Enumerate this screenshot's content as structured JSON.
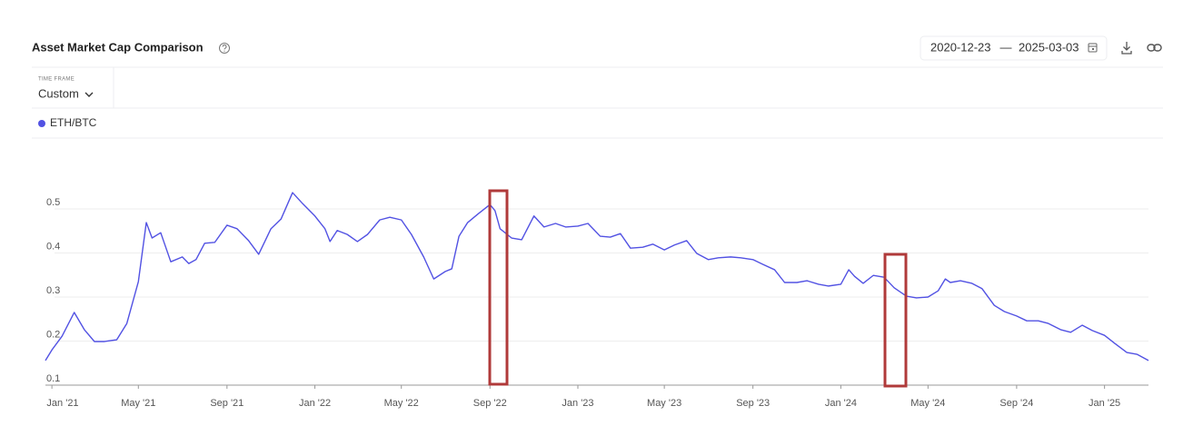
{
  "controls": {
    "time_frame_label": "TIME FRAME",
    "time_frame": "Custom",
    "range_separator": "—"
  },
  "chart_data": {
    "type": "line",
    "title": "Asset Market Cap Comparison",
    "xlim": [
      "2020-12-23",
      "2025-03-03"
    ],
    "xticks": [
      {
        "value": "2021-01-01",
        "label": "Jan '21"
      },
      {
        "value": "2021-05-01",
        "label": "May '21"
      },
      {
        "value": "2021-09-01",
        "label": "Sep '21"
      },
      {
        "value": "2022-01-01",
        "label": "Jan '22"
      },
      {
        "value": "2022-05-01",
        "label": "May '22"
      },
      {
        "value": "2022-09-01",
        "label": "Sep '22"
      },
      {
        "value": "2023-01-01",
        "label": "Jan '23"
      },
      {
        "value": "2023-05-01",
        "label": "May '23"
      },
      {
        "value": "2023-09-01",
        "label": "Sep '23"
      },
      {
        "value": "2024-01-01",
        "label": "Jan '24"
      },
      {
        "value": "2024-05-01",
        "label": "May '24"
      },
      {
        "value": "2024-09-01",
        "label": "Sep '24"
      },
      {
        "value": "2025-01-01",
        "label": "Jan '25"
      }
    ],
    "ylim": [
      0.1,
      0.6
    ],
    "yticks": [
      0.1,
      0.2,
      0.3,
      0.4,
      0.5
    ],
    "grid": true,
    "x": [
      "2020-12-23",
      "2021-01-01",
      "2021-01-15",
      "2021-02-01",
      "2021-02-15",
      "2021-03-01",
      "2021-03-15",
      "2021-04-01",
      "2021-04-15",
      "2021-05-01",
      "2021-05-12",
      "2021-05-20",
      "2021-06-01",
      "2021-06-15",
      "2021-07-01",
      "2021-07-10",
      "2021-07-20",
      "2021-08-01",
      "2021-08-15",
      "2021-09-01",
      "2021-09-15",
      "2021-10-01",
      "2021-10-15",
      "2021-11-01",
      "2021-11-15",
      "2021-12-01",
      "2021-12-15",
      "2022-01-01",
      "2022-01-15",
      "2022-01-22",
      "2022-02-01",
      "2022-02-15",
      "2022-03-01",
      "2022-03-15",
      "2022-04-01",
      "2022-04-15",
      "2022-05-01",
      "2022-05-15",
      "2022-06-01",
      "2022-06-15",
      "2022-07-01",
      "2022-07-10",
      "2022-07-20",
      "2022-08-01",
      "2022-08-15",
      "2022-09-01",
      "2022-09-08",
      "2022-09-15",
      "2022-10-01",
      "2022-10-15",
      "2022-11-01",
      "2022-11-15",
      "2022-12-01",
      "2022-12-15",
      "2023-01-01",
      "2023-01-15",
      "2023-02-01",
      "2023-02-15",
      "2023-03-01",
      "2023-03-15",
      "2023-04-01",
      "2023-04-15",
      "2023-05-01",
      "2023-05-15",
      "2023-06-01",
      "2023-06-15",
      "2023-07-01",
      "2023-07-15",
      "2023-08-01",
      "2023-08-15",
      "2023-09-01",
      "2023-09-15",
      "2023-10-01",
      "2023-10-15",
      "2023-11-01",
      "2023-11-15",
      "2023-12-01",
      "2023-12-15",
      "2024-01-01",
      "2024-01-12",
      "2024-01-20",
      "2024-02-01",
      "2024-02-15",
      "2024-03-01",
      "2024-03-15",
      "2024-04-01",
      "2024-04-15",
      "2024-05-01",
      "2024-05-15",
      "2024-05-25",
      "2024-06-01",
      "2024-06-15",
      "2024-07-01",
      "2024-07-15",
      "2024-08-01",
      "2024-08-15",
      "2024-09-01",
      "2024-09-15",
      "2024-10-01",
      "2024-10-15",
      "2024-11-01",
      "2024-11-15",
      "2024-12-01",
      "2024-12-15",
      "2025-01-01",
      "2025-01-15",
      "2025-02-01",
      "2025-02-15",
      "2025-03-03"
    ],
    "series": [
      {
        "name": "ETH/BTC",
        "color": "#5252e3",
        "values": [
          0.156,
          0.18,
          0.211,
          0.265,
          0.226,
          0.199,
          0.199,
          0.203,
          0.24,
          0.335,
          0.469,
          0.434,
          0.446,
          0.38,
          0.391,
          0.376,
          0.385,
          0.422,
          0.424,
          0.463,
          0.455,
          0.428,
          0.397,
          0.455,
          0.477,
          0.537,
          0.512,
          0.484,
          0.455,
          0.426,
          0.451,
          0.442,
          0.426,
          0.442,
          0.475,
          0.481,
          0.475,
          0.442,
          0.391,
          0.341,
          0.358,
          0.364,
          0.438,
          0.469,
          0.488,
          0.51,
          0.496,
          0.455,
          0.434,
          0.43,
          0.484,
          0.459,
          0.467,
          0.459,
          0.461,
          0.467,
          0.438,
          0.436,
          0.444,
          0.411,
          0.413,
          0.42,
          0.407,
          0.418,
          0.428,
          0.399,
          0.385,
          0.389,
          0.391,
          0.389,
          0.385,
          0.374,
          0.362,
          0.333,
          0.333,
          0.337,
          0.329,
          0.325,
          0.329,
          0.362,
          0.347,
          0.331,
          0.349,
          0.345,
          0.321,
          0.302,
          0.298,
          0.3,
          0.314,
          0.341,
          0.333,
          0.337,
          0.331,
          0.319,
          0.281,
          0.267,
          0.257,
          0.246,
          0.246,
          0.24,
          0.226,
          0.22,
          0.236,
          0.224,
          0.213,
          0.195,
          0.174,
          0.17,
          0.156
        ]
      }
    ]
  }
}
